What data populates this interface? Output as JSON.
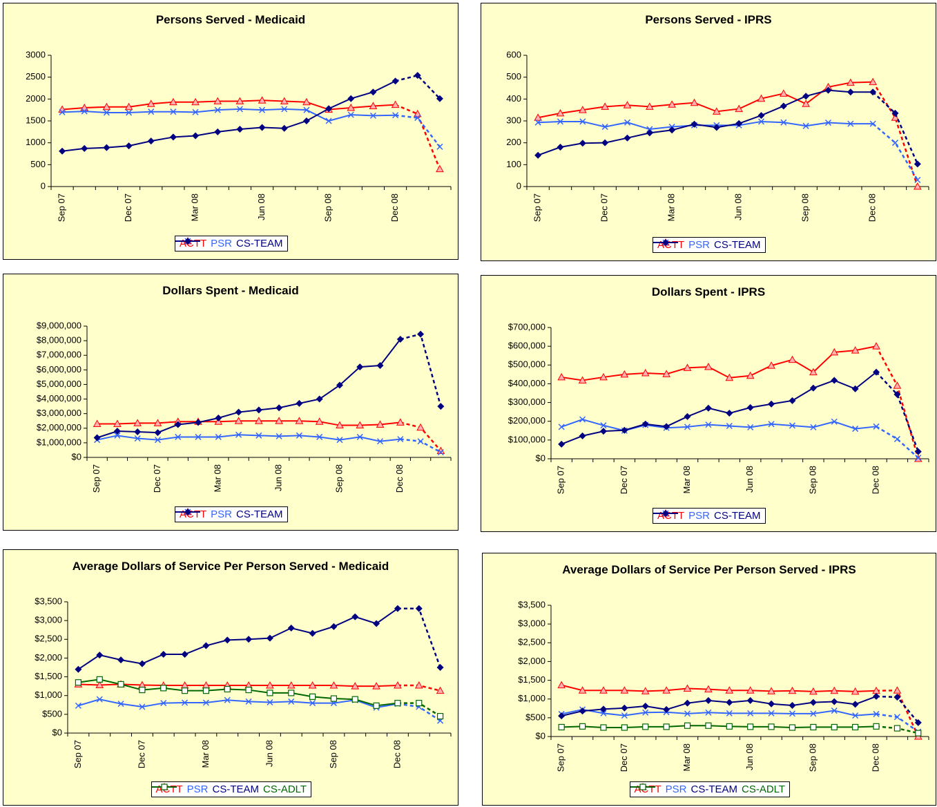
{
  "chart_data": [
    {
      "type": "line",
      "title": "Persons Served - Medicaid",
      "categories": [
        "Sep 07",
        null,
        null,
        "Dec 07",
        null,
        null,
        "Mar 08",
        null,
        null,
        "Jun 08",
        null,
        null,
        "Sep 08",
        null,
        null,
        "Dec 08",
        null,
        null
      ],
      "ylim": [
        0,
        3000
      ],
      "yticks": [
        0,
        500,
        1000,
        1500,
        2000,
        2500,
        3000
      ],
      "grid": false,
      "series": [
        {
          "name": "ACTT",
          "color": "#ff0000",
          "marker": "triangle",
          "values": [
            1760,
            1800,
            1820,
            1820,
            1890,
            1930,
            1930,
            1950,
            1950,
            1970,
            1950,
            1930,
            1760,
            1800,
            1840,
            1870,
            1660,
            400
          ]
        },
        {
          "name": "PSR",
          "color": "#3366ff",
          "marker": "x",
          "values": [
            1700,
            1720,
            1690,
            1690,
            1710,
            1710,
            1700,
            1750,
            1770,
            1750,
            1770,
            1750,
            1500,
            1640,
            1620,
            1630,
            1570,
            910
          ]
        },
        {
          "name": "CS-TEAM",
          "color": "#000080",
          "marker": "diamond",
          "values": [
            810,
            870,
            890,
            930,
            1040,
            1130,
            1160,
            1250,
            1310,
            1350,
            1330,
            1500,
            1780,
            2010,
            2160,
            2410,
            2540,
            2010
          ]
        }
      ]
    },
    {
      "type": "line",
      "title": "Persons Served - IPRS",
      "categories": [
        "Sep 07",
        null,
        null,
        "Dec 07",
        null,
        null,
        "Mar 08",
        null,
        null,
        "Jun 08",
        null,
        null,
        "Sep 08",
        null,
        null,
        "Dec 08",
        null,
        null
      ],
      "ylim": [
        0,
        600
      ],
      "yticks": [
        0,
        100,
        200,
        300,
        400,
        500,
        600
      ],
      "grid": false,
      "series": [
        {
          "name": "ACTT",
          "color": "#ff0000",
          "marker": "triangle",
          "values": [
            315,
            335,
            350,
            365,
            372,
            365,
            375,
            383,
            343,
            355,
            402,
            425,
            378,
            455,
            475,
            478,
            315,
            0
          ]
        },
        {
          "name": "PSR",
          "color": "#3366ff",
          "marker": "x",
          "values": [
            293,
            297,
            297,
            273,
            293,
            262,
            273,
            280,
            280,
            280,
            297,
            293,
            277,
            292,
            287,
            287,
            200,
            30
          ]
        },
        {
          "name": "CS-TEAM",
          "color": "#000080",
          "marker": "diamond",
          "values": [
            143,
            180,
            198,
            200,
            222,
            245,
            258,
            285,
            270,
            288,
            325,
            368,
            413,
            440,
            432,
            432,
            335,
            103
          ]
        }
      ]
    },
    {
      "type": "line",
      "title": "Dollars Spent - Medicaid",
      "categories": [
        "Sep 07",
        null,
        null,
        "Dec 07",
        null,
        null,
        "Mar 08",
        null,
        null,
        "Jun 08",
        null,
        null,
        "Sep 08",
        null,
        null,
        "Dec 08",
        null,
        null
      ],
      "ylim": [
        0,
        9000000
      ],
      "yticks": [
        {
          "value": 0,
          "label": "$0"
        },
        {
          "value": 1000000,
          "label": "$1,000,000"
        },
        {
          "value": 2000000,
          "label": "$2,000,000"
        },
        {
          "value": 3000000,
          "label": "$3,000,000"
        },
        {
          "value": 4000000,
          "label": "$4,000,000"
        },
        {
          "value": 5000000,
          "label": "$5,000,000"
        },
        {
          "value": 6000000,
          "label": "$6,000,000"
        },
        {
          "value": 7000000,
          "label": "$7,000,000"
        },
        {
          "value": 8000000,
          "label": "$8,000,000"
        },
        {
          "value": 9000000,
          "label": "$9,000,000"
        }
      ],
      "grid": false,
      "series": [
        {
          "name": "ACTT",
          "color": "#ff0000",
          "marker": "triangle",
          "values": [
            2300000,
            2300000,
            2350000,
            2350000,
            2450000,
            2450000,
            2450000,
            2500000,
            2500000,
            2500000,
            2500000,
            2450000,
            2200000,
            2200000,
            2250000,
            2400000,
            2050000,
            450000
          ]
        },
        {
          "name": "PSR",
          "color": "#3366ff",
          "marker": "x",
          "values": [
            1200000,
            1500000,
            1300000,
            1200000,
            1400000,
            1400000,
            1400000,
            1550000,
            1500000,
            1450000,
            1500000,
            1400000,
            1200000,
            1400000,
            1100000,
            1250000,
            1100000,
            350000
          ]
        },
        {
          "name": "CS-TEAM",
          "color": "#000080",
          "marker": "diamond",
          "values": [
            1350000,
            1800000,
            1750000,
            1700000,
            2250000,
            2400000,
            2700000,
            3100000,
            3250000,
            3400000,
            3700000,
            4000000,
            4950000,
            6200000,
            6300000,
            8100000,
            8450000,
            3500000
          ]
        }
      ]
    },
    {
      "type": "line",
      "title": "Dollars Spent - IPRS",
      "categories": [
        "Sep 07",
        null,
        null,
        "Dec 07",
        null,
        null,
        "Mar 08",
        null,
        null,
        "Jun 08",
        null,
        null,
        "Sep 08",
        null,
        null,
        "Dec 08",
        null,
        null
      ],
      "ylim": [
        0,
        700000
      ],
      "yticks": [
        {
          "value": 0,
          "label": "$0"
        },
        {
          "value": 100000,
          "label": "$100,000"
        },
        {
          "value": 200000,
          "label": "$200,000"
        },
        {
          "value": 300000,
          "label": "$300,000"
        },
        {
          "value": 400000,
          "label": "$400,000"
        },
        {
          "value": 500000,
          "label": "$500,000"
        },
        {
          "value": 600000,
          "label": "$600,000"
        },
        {
          "value": 700000,
          "label": "$700,000"
        }
      ],
      "grid": false,
      "series": [
        {
          "name": "ACTT",
          "color": "#ff0000",
          "marker": "triangle",
          "values": [
            435000,
            418000,
            435000,
            450000,
            457000,
            452000,
            485000,
            490000,
            432000,
            443000,
            497000,
            528000,
            462000,
            568000,
            578000,
            600000,
            390000,
            0
          ]
        },
        {
          "name": "PSR",
          "color": "#3366ff",
          "marker": "x",
          "values": [
            170000,
            210000,
            178000,
            150000,
            180000,
            165000,
            170000,
            182000,
            175000,
            168000,
            185000,
            177000,
            168000,
            198000,
            160000,
            172000,
            105000,
            5000
          ]
        },
        {
          "name": "CS-TEAM",
          "color": "#000080",
          "marker": "diamond",
          "values": [
            78000,
            122000,
            147000,
            152000,
            185000,
            172000,
            225000,
            270000,
            243000,
            273000,
            292000,
            310000,
            377000,
            418000,
            373000,
            462000,
            343000,
            38000
          ]
        }
      ]
    },
    {
      "type": "line",
      "title": "Average Dollars of Service Per Person Served - Medicaid",
      "categories": [
        "Sep 07",
        null,
        null,
        "Dec 07",
        null,
        null,
        "Mar 08",
        null,
        null,
        "Jun 08",
        null,
        null,
        "Sep 08",
        null,
        null,
        "Dec 08",
        null,
        null
      ],
      "ylim": [
        0,
        3500
      ],
      "yticks": [
        {
          "value": 0,
          "label": "$0"
        },
        {
          "value": 500,
          "label": "$500"
        },
        {
          "value": 1000,
          "label": "$1,000"
        },
        {
          "value": 1500,
          "label": "$1,500"
        },
        {
          "value": 2000,
          "label": "$2,000"
        },
        {
          "value": 2500,
          "label": "$2,500"
        },
        {
          "value": 3000,
          "label": "$3,000"
        },
        {
          "value": 3500,
          "label": "$3,500"
        }
      ],
      "grid": false,
      "series": [
        {
          "name": "ACTT",
          "color": "#ff0000",
          "marker": "triangle",
          "values": [
            1300,
            1280,
            1300,
            1280,
            1270,
            1270,
            1270,
            1270,
            1270,
            1270,
            1270,
            1270,
            1270,
            1250,
            1250,
            1270,
            1270,
            1130
          ]
        },
        {
          "name": "PSR",
          "color": "#3366ff",
          "marker": "x",
          "values": [
            730,
            900,
            780,
            700,
            800,
            810,
            810,
            880,
            840,
            820,
            840,
            800,
            800,
            880,
            680,
            780,
            700,
            330
          ]
        },
        {
          "name": "CS-TEAM",
          "color": "#000080",
          "marker": "diamond",
          "values": [
            1700,
            2080,
            1950,
            1850,
            2100,
            2100,
            2330,
            2480,
            2500,
            2530,
            2800,
            2660,
            2840,
            3100,
            2920,
            3320,
            3320,
            1750
          ]
        },
        {
          "name": "CS-ADLT",
          "color": "#006600",
          "marker": "square",
          "values": [
            1350,
            1430,
            1300,
            1150,
            1200,
            1130,
            1130,
            1170,
            1150,
            1070,
            1070,
            970,
            920,
            900,
            730,
            800,
            800,
            450
          ]
        }
      ]
    },
    {
      "type": "line",
      "title": "Average Dollars of Service Per Person Served - IPRS",
      "categories": [
        "Sep 07",
        null,
        null,
        "Dec 07",
        null,
        null,
        "Mar 08",
        null,
        null,
        "Jun 08",
        null,
        null,
        "Sep 08",
        null,
        null,
        "Dec 08",
        null,
        null
      ],
      "ylim": [
        0,
        3500
      ],
      "yticks": [
        {
          "value": 0,
          "label": "$0"
        },
        {
          "value": 500,
          "label": "$500"
        },
        {
          "value": 1000,
          "label": "$1,000"
        },
        {
          "value": 1500,
          "label": "$1,500"
        },
        {
          "value": 2000,
          "label": "$2,000"
        },
        {
          "value": 2500,
          "label": "$2,500"
        },
        {
          "value": 3000,
          "label": "$3,000"
        },
        {
          "value": 3500,
          "label": "$3,500"
        }
      ],
      "grid": false,
      "series": [
        {
          "name": "ACTT",
          "color": "#ff0000",
          "marker": "triangle",
          "values": [
            1370,
            1230,
            1230,
            1230,
            1210,
            1230,
            1280,
            1260,
            1230,
            1230,
            1210,
            1220,
            1200,
            1220,
            1200,
            1220,
            1230,
            0
          ]
        },
        {
          "name": "PSR",
          "color": "#3366ff",
          "marker": "x",
          "values": [
            600,
            720,
            620,
            560,
            640,
            650,
            610,
            640,
            620,
            620,
            620,
            610,
            610,
            690,
            560,
            600,
            520,
            130
          ]
        },
        {
          "name": "CS-TEAM",
          "color": "#000080",
          "marker": "diamond",
          "values": [
            550,
            680,
            730,
            760,
            810,
            720,
            890,
            960,
            910,
            960,
            870,
            830,
            910,
            930,
            860,
            1070,
            1050,
            370
          ]
        },
        {
          "name": "CS-ADLT",
          "color": "#006600",
          "marker": "square",
          "values": [
            250,
            270,
            240,
            240,
            260,
            260,
            290,
            290,
            270,
            260,
            260,
            240,
            250,
            250,
            250,
            270,
            220,
            90
          ]
        }
      ]
    }
  ]
}
